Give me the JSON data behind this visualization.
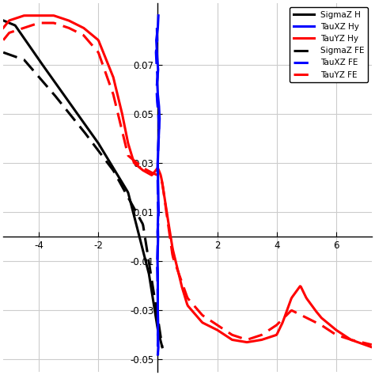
{
  "legend_labels": [
    "SigmaZ H",
    "TauXZ Hy",
    "TauYZ Hy",
    "SigmaZ FE",
    "TauXZ FE",
    "TauYZ FE"
  ],
  "legend_colors": [
    "black",
    "blue",
    "red",
    "black",
    "blue",
    "red"
  ],
  "legend_linestyles": [
    "-",
    "-",
    "-",
    "--",
    "--",
    "--"
  ],
  "xlim": [
    -5.2,
    7.2
  ],
  "ylim": [
    -0.055,
    0.095
  ],
  "xticks": [
    -4,
    -2,
    0,
    2,
    4,
    6
  ],
  "yticks": [
    -0.05,
    -0.03,
    -0.01,
    0.01,
    0.03,
    0.05,
    0.07
  ],
  "grid_color": "#cccccc",
  "linewidth": 2.2
}
